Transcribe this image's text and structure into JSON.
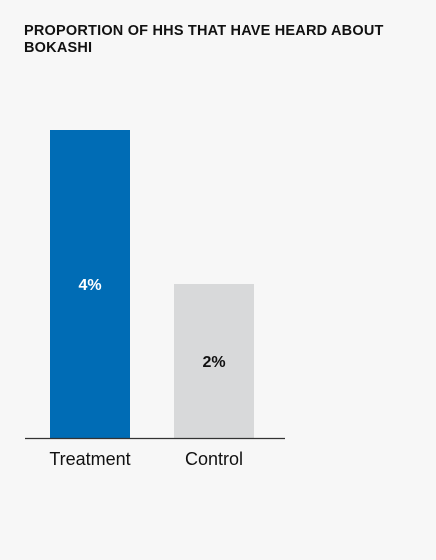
{
  "chart_data": {
    "type": "bar",
    "title": "PROPORTION OF HHS THAT HAVE HEARD ABOUT BOKASHI",
    "categories": [
      "Treatment",
      "Control"
    ],
    "values": [
      4,
      2
    ],
    "value_labels": [
      "4%",
      "2%"
    ],
    "unit": "%",
    "colors": [
      "#006cb5",
      "#d8d9da"
    ],
    "label_colors": [
      "#ffffff",
      "#111111"
    ],
    "xlabel": "",
    "ylabel": "",
    "ylim": [
      0,
      4
    ],
    "grid": false,
    "legend": "none"
  }
}
